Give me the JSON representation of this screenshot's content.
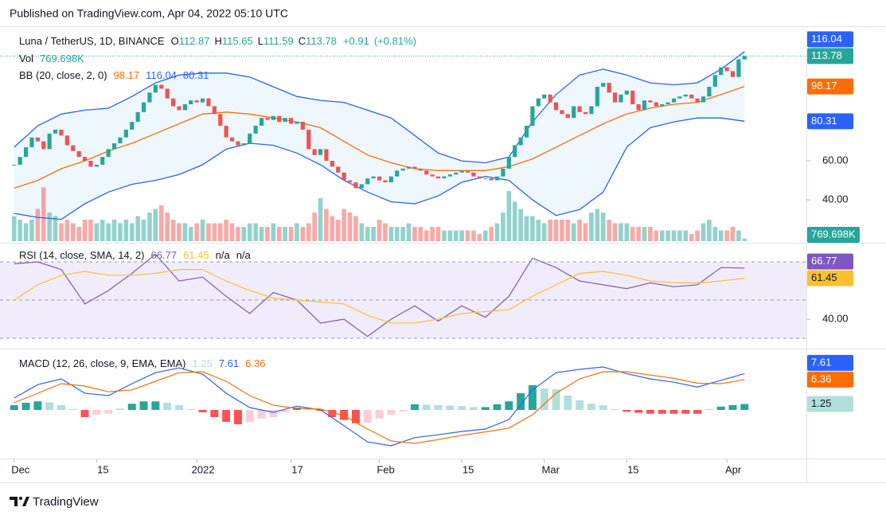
{
  "header": {
    "published": "Published on TradingView.com, Apr 04, 2022 05:10 UTC"
  },
  "footer": {
    "brand": "TradingView"
  },
  "chart_data": [
    {
      "type": "candlestick",
      "title": "Luna / TetherUS, 1D, BINANCE",
      "ohlc": [
        {
          "label": "O",
          "value": 112.87
        },
        {
          "label": "H",
          "value": 115.65
        },
        {
          "label": "L",
          "value": 111.59
        },
        {
          "label": "C",
          "value": 113.78
        }
      ],
      "change": {
        "value": 0.91,
        "label": "+0.91"
      },
      "change_pct": {
        "value": 0.81,
        "label": "(+0.81%)"
      },
      "up_color": "#26a69a",
      "down_color": "#ef5350",
      "xlim": [
        -2.4,
        134.5
      ],
      "ylim": [
        18.8,
        128.2
      ],
      "yticks": [
        {
          "value": 40,
          "label": "40.00"
        },
        {
          "value": 60,
          "label": "60.00"
        }
      ],
      "x": [
        0,
        1,
        2,
        3,
        4,
        5,
        6,
        7,
        8,
        9,
        10,
        11,
        12,
        13,
        14,
        15,
        16,
        17,
        18,
        19,
        20,
        21,
        22,
        23,
        24,
        25,
        26,
        27,
        28,
        29,
        30,
        31,
        32,
        33,
        34,
        35,
        36,
        37,
        38,
        39,
        40,
        41,
        42,
        43,
        44,
        45,
        46,
        47,
        48,
        49,
        50,
        51,
        52,
        53,
        54,
        55,
        56,
        57,
        58,
        59,
        60,
        61,
        62,
        63,
        64,
        65,
        66,
        67,
        68,
        69,
        70,
        71,
        72,
        73,
        74,
        75,
        76,
        77,
        78,
        79,
        80,
        81,
        82,
        83,
        84,
        85,
        86,
        87,
        88,
        89,
        90,
        91,
        92,
        93,
        94,
        95,
        96,
        97,
        98,
        99,
        100,
        101,
        102,
        103,
        104,
        105,
        106,
        107,
        108,
        109,
        110,
        111,
        112,
        113,
        114,
        115,
        116,
        117,
        118,
        119,
        120,
        121,
        122,
        123,
        124
      ],
      "values": [
        58,
        62,
        67,
        72,
        70,
        66,
        74,
        76,
        73,
        68,
        65,
        62,
        60,
        57,
        58,
        62,
        66,
        69,
        72,
        76,
        80,
        85,
        90,
        95,
        99,
        97,
        92,
        88,
        86,
        89,
        91,
        90,
        92,
        88,
        84,
        78,
        72,
        70,
        68,
        69,
        74,
        78,
        82,
        81,
        83,
        80,
        82,
        79,
        80,
        76,
        66,
        63,
        66,
        60,
        57,
        54,
        50,
        49,
        46,
        48,
        51,
        52,
        50,
        49,
        52,
        55,
        56,
        57,
        56,
        55,
        53,
        52,
        51,
        52,
        53,
        54,
        55,
        54,
        52,
        51,
        51,
        50,
        52,
        56,
        62,
        68,
        72,
        78,
        88,
        92,
        94,
        90,
        86,
        84,
        82,
        88,
        85,
        84,
        88,
        98,
        100,
        95,
        90,
        94,
        96,
        89,
        86,
        91,
        90,
        88,
        89,
        90,
        92,
        93,
        94,
        92,
        90,
        93,
        98,
        104,
        108,
        106,
        103,
        112,
        113.78
      ],
      "volume": {
        "name": "Vol",
        "legend_value": {
          "value": 0.769698,
          "label": "769.698K"
        },
        "ylim": [
          0,
          16
        ],
        "values": [
          7,
          6,
          5,
          6,
          9,
          15,
          8,
          7,
          5,
          6,
          5,
          4,
          6,
          6,
          5,
          6,
          5,
          6,
          5,
          6,
          5,
          7,
          6,
          8,
          9,
          10,
          8,
          6,
          5,
          5,
          4,
          5,
          6,
          5,
          5,
          5,
          6,
          5,
          4,
          4,
          5,
          5,
          4,
          4,
          5,
          4,
          4,
          4,
          5,
          4,
          5,
          8,
          12,
          9,
          7,
          6,
          9,
          8,
          7,
          5,
          4,
          4,
          6,
          5,
          4,
          4,
          4,
          5,
          4,
          4,
          3,
          4,
          4,
          3,
          3,
          3,
          3,
          3,
          3,
          2,
          3,
          4,
          5,
          8,
          14,
          11,
          9,
          7,
          7,
          6,
          5,
          6,
          6,
          6,
          6,
          5,
          6,
          5,
          8,
          9,
          8,
          6,
          5,
          5,
          5,
          4,
          4,
          4,
          4,
          3,
          3,
          3,
          3,
          3,
          3,
          2,
          3,
          5,
          6,
          4,
          3,
          3,
          4,
          3,
          0.769698
        ]
      },
      "bb": {
        "label": "BB (20, close, 2, 0)",
        "fill": "#e3f2fd",
        "x": [
          0,
          4,
          8,
          12,
          16,
          20,
          24,
          28,
          32,
          36,
          40,
          44,
          48,
          52,
          56,
          60,
          64,
          68,
          72,
          76,
          80,
          84,
          88,
          92,
          96,
          100,
          104,
          108,
          112,
          116,
          120,
          124
        ],
        "series": [
          {
            "color": "#ff6d00",
            "values": [
              46,
              50,
              56,
              60,
              65,
              69,
              74,
              79,
              84,
              85,
              84,
              82,
              80,
              77,
              70,
              63,
              59,
              56,
              55,
              55,
              55,
              57,
              61,
              67,
              73,
              79,
              84,
              87,
              89,
              90,
              94,
              98.17
            ]
          },
          {
            "color": "#2962ff",
            "values": [
              67,
              78,
              84,
              86,
              87,
              93,
              100,
              104,
              105,
              105,
              103,
              98,
              93,
              91,
              90,
              86,
              82,
              73,
              64,
              60,
              59,
              62,
              80,
              94,
              104,
              107,
              104,
              100,
              99,
              100,
              107,
              116.04
            ]
          },
          {
            "color": "#2962ff",
            "values": [
              33,
              31,
              30,
              38,
              44,
              48,
              50,
              53,
              58,
              66,
              69,
              68,
              64,
              58,
              50,
              44,
              39,
              38,
              42,
              49,
              52,
              50,
              40,
              32,
              35,
              44,
              67,
              77,
              80,
              82,
              82,
              80.31
            ]
          }
        ]
      }
    },
    {
      "type": "line",
      "title": "RSI (14, close, SMA, 14, 2)",
      "na_labels": [
        "n/a",
        "n/a"
      ],
      "xlim": [
        -2.4,
        134.5
      ],
      "ylim": [
        25,
        78.75
      ],
      "yticks": [
        {
          "value": 40,
          "label": "40.00"
        }
      ],
      "bands": [
        70,
        50,
        30
      ],
      "band_fill": "#f1ecfb",
      "x": [
        0,
        4,
        8,
        12,
        16,
        20,
        24,
        28,
        32,
        36,
        40,
        44,
        48,
        52,
        56,
        60,
        64,
        68,
        72,
        76,
        80,
        84,
        88,
        92,
        96,
        100,
        104,
        108,
        112,
        116,
        120,
        124
      ],
      "series": [
        {
          "color": "#7e57c2",
          "values": [
            69,
            70,
            66,
            48,
            55,
            64,
            74,
            60,
            62,
            52,
            43,
            54,
            50,
            38,
            40,
            31,
            40,
            47,
            39,
            47,
            41,
            52,
            72,
            67,
            60,
            58,
            56,
            59,
            57,
            58,
            67,
            66.77
          ]
        },
        {
          "color": "#fbc02d",
          "values": [
            50,
            58,
            63,
            65,
            63,
            63,
            64,
            66,
            66,
            60,
            55,
            51,
            50,
            49,
            48,
            42,
            38,
            38,
            40,
            43,
            44,
            45,
            52,
            58,
            64,
            65,
            63,
            60,
            59,
            59,
            60,
            61.45
          ]
        }
      ]
    },
    {
      "type": "macd",
      "title": "MACD (12, 26, close, 9, EMA, EMA)",
      "xlim": [
        -2.4,
        134.5
      ],
      "ylim": [
        -10,
        12.5
      ],
      "xticks": [
        {
          "value": 0,
          "label": "Dec"
        },
        {
          "value": 14,
          "label": "15"
        },
        {
          "value": 31,
          "label": "2022"
        },
        {
          "value": 47,
          "label": "17"
        },
        {
          "value": 62,
          "label": "Feb"
        },
        {
          "value": 76,
          "label": "15"
        },
        {
          "value": 90,
          "label": "Mar"
        },
        {
          "value": 104,
          "label": "15"
        },
        {
          "value": 121,
          "label": "Apr"
        }
      ],
      "histogram": {
        "colors": [
          "#26a69a",
          "#b2dfdb",
          "#ffcdd2",
          "#ff5252"
        ],
        "x": [
          0,
          2,
          4,
          6,
          8,
          10,
          12,
          14,
          16,
          18,
          20,
          22,
          24,
          26,
          28,
          30,
          32,
          34,
          36,
          38,
          40,
          42,
          44,
          46,
          48,
          50,
          52,
          54,
          56,
          58,
          60,
          62,
          64,
          66,
          68,
          70,
          72,
          74,
          76,
          78,
          80,
          82,
          84,
          86,
          88,
          90,
          92,
          94,
          96,
          98,
          100,
          102,
          104,
          106,
          108,
          110,
          112,
          114,
          116,
          118,
          120,
          122,
          124
        ],
        "values": [
          1,
          1.5,
          1.8,
          1.6,
          1,
          0.2,
          -1.5,
          -1,
          -0.8,
          0.3,
          1.3,
          1.8,
          1.8,
          1.5,
          1,
          0.2,
          -0.5,
          -1.5,
          -2.5,
          -3,
          -2.5,
          -1.8,
          -1.5,
          -0.5,
          0.5,
          0.2,
          -0.2,
          -1.5,
          -2.1,
          -2.8,
          -2.7,
          -1.8,
          -1,
          -0.3,
          1.2,
          1.1,
          1,
          0.9,
          0.8,
          0.6,
          0.6,
          1.2,
          1.8,
          3.5,
          5.2,
          4.5,
          4.3,
          3,
          2,
          1.3,
          1,
          0.2,
          -0.4,
          -0.6,
          -0.8,
          -0.8,
          -0.8,
          -0.8,
          -0.8,
          0.2,
          0.7,
          1,
          1.25
        ]
      },
      "x": [
        0,
        4,
        8,
        12,
        16,
        20,
        24,
        28,
        32,
        36,
        40,
        44,
        48,
        52,
        56,
        60,
        64,
        68,
        72,
        76,
        80,
        84,
        88,
        92,
        96,
        100,
        104,
        108,
        112,
        116,
        120,
        124
      ],
      "series": [
        {
          "color": "#2962ff",
          "values": [
            2.5,
            5.3,
            6.5,
            3.5,
            3,
            5.5,
            7.8,
            8.8,
            7.5,
            3.5,
            0.5,
            -0.5,
            0.8,
            0,
            -3.3,
            -6.7,
            -7.5,
            -5.8,
            -5.2,
            -4.5,
            -4,
            -2,
            4.2,
            7.8,
            8.5,
            9,
            7.6,
            6.5,
            5.8,
            4.8,
            6.2,
            7.61
          ]
        },
        {
          "color": "#ff6d00",
          "values": [
            1.5,
            3.5,
            5.5,
            5,
            3.8,
            4.2,
            6,
            7.8,
            8,
            6,
            3,
            1,
            0.3,
            0.2,
            -1.2,
            -4,
            -6.5,
            -7,
            -6.2,
            -5.3,
            -4.6,
            -3.8,
            -1,
            3.5,
            6.5,
            8,
            8,
            7.3,
            6.6,
            5.6,
            5.5,
            6.36
          ]
        }
      ]
    }
  ]
}
